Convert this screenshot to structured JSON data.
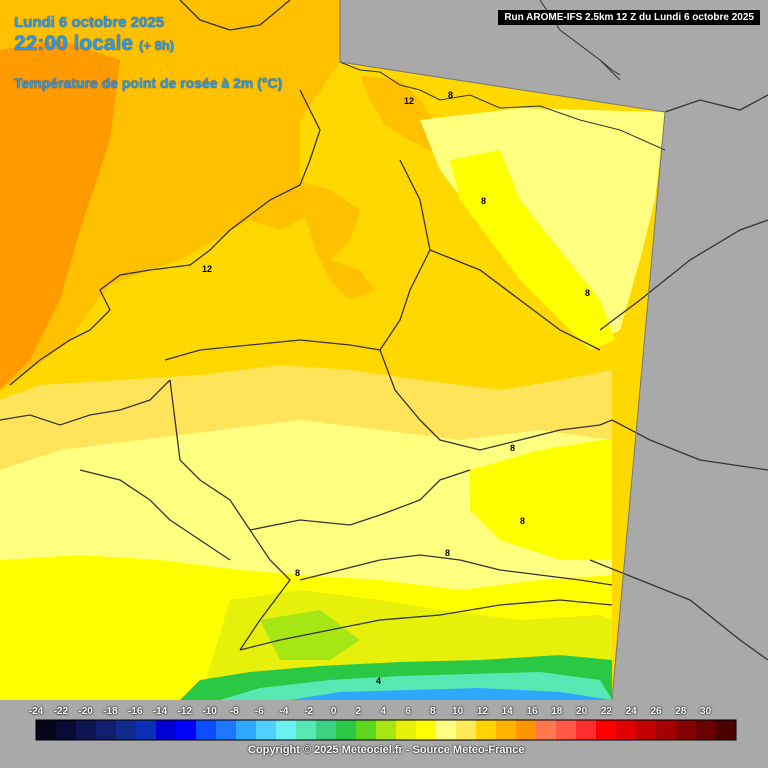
{
  "header": {
    "date": "Lundi 6 octobre 2025",
    "time": "22:00 locale",
    "lead": "(+ 8h)",
    "variable": "Température de point de rosée à 2m (°C)",
    "run": "Run AROME-IFS 2.5km 12 Z du Lundi 6 octobre 2025"
  },
  "legend": {
    "ticks": [
      "-24",
      "-22",
      "-20",
      "-18",
      "-16",
      "-14",
      "-12",
      "-10",
      "-8",
      "-6",
      "-4",
      "-2",
      "0",
      "2",
      "4",
      "6",
      "8",
      "10",
      "12",
      "14",
      "16",
      "18",
      "20",
      "22",
      "24",
      "26",
      "28",
      "30"
    ],
    "colors": [
      "#05051a",
      "#0a0a35",
      "#0d1450",
      "#0f1e6e",
      "#102a8c",
      "#0a2fb4",
      "#0000d2",
      "#0000ff",
      "#0b4cff",
      "#1e78ff",
      "#2ea8ff",
      "#4fd0ff",
      "#6cf0f0",
      "#58e8b4",
      "#3cd282",
      "#2bc845",
      "#5fd71e",
      "#a5e614",
      "#e6f00a",
      "#ffff00",
      "#ffff80",
      "#ffea5a",
      "#ffd200",
      "#ffb400",
      "#ff9600",
      "#ff7850",
      "#ff5a46",
      "#ff2d2d",
      "#ff0000",
      "#e10000",
      "#c30000",
      "#a50000",
      "#870000",
      "#690000",
      "#4b0000"
    ]
  },
  "map": {
    "contour_labels": [
      {
        "text": "12"
      },
      {
        "text": "12"
      },
      {
        "text": "8"
      },
      {
        "text": "8"
      },
      {
        "text": "8"
      },
      {
        "text": "8"
      },
      {
        "text": "8"
      },
      {
        "text": "8"
      },
      {
        "text": "8"
      },
      {
        "text": "4"
      }
    ]
  },
  "footer": {
    "copyright": "Copyright © 2025 Meteociel.fr - Source Meteo-France"
  }
}
